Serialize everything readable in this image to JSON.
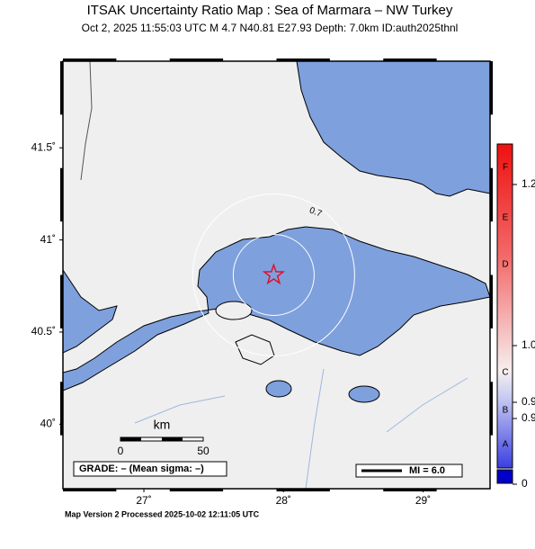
{
  "map": {
    "title": "ITSAK Uncertainty Ratio Map : Sea of Marmara – NW Turkey",
    "subtitle": "Oct  2, 2025 11:55:03 UTC   M 4.7   N40.81 E27.93   Depth: 7.0km   ID:auth2025thnl",
    "xlim": [
      26.42,
      29.48
    ],
    "ylim": [
      39.65,
      41.97
    ],
    "xticks": [
      {
        "value": 27,
        "label": "27˚"
      },
      {
        "value": 28,
        "label": "28˚"
      },
      {
        "value": 29,
        "label": "29˚"
      }
    ],
    "yticks": [
      {
        "value": 40,
        "label": "40˚"
      },
      {
        "value": 40.5,
        "label": "40.5˚"
      },
      {
        "value": 41,
        "label": "41˚"
      },
      {
        "value": 41.5,
        "label": "41.5˚"
      }
    ],
    "epicenter": {
      "lat": 40.81,
      "lon": 27.93
    },
    "contour_label": "0.7",
    "scale": {
      "unit": "km",
      "start": "0",
      "end": "50"
    },
    "grade": "GRADE: – (Mean sigma: –)",
    "mi_legend": "MI = 6.0",
    "footer": "Map Version 2 Processed 2025-10-02 12:11:05 UTC",
    "colorbar": {
      "letters": [
        "F",
        "E",
        "D",
        "C",
        "B",
        "A"
      ],
      "labels": [
        "1.2",
        "1.0",
        "0.9",
        "0.9",
        "0"
      ]
    }
  }
}
